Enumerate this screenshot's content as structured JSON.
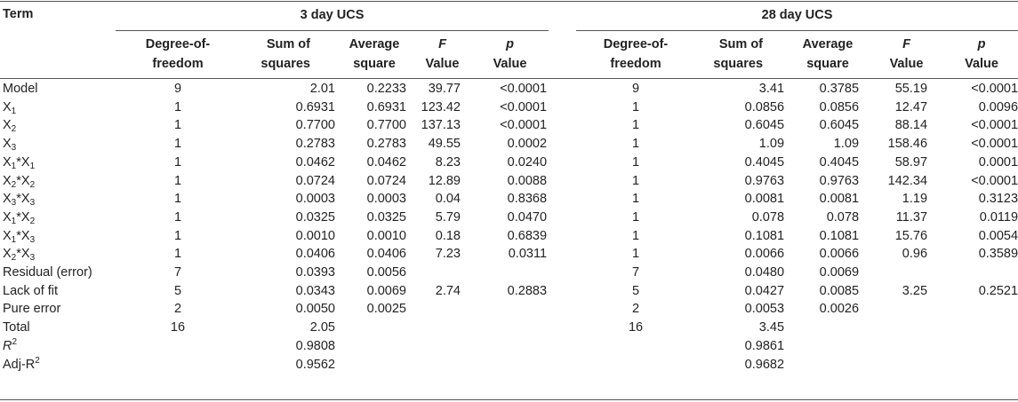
{
  "headers": {
    "term": "Term",
    "group1": "3 day UCS",
    "group2": "28 day UCS",
    "cols": [
      {
        "line1": "Degree-of-",
        "line2": "freedom",
        "italic": false
      },
      {
        "line1": "Sum of",
        "line2": "squares",
        "italic": false
      },
      {
        "line1": "Average",
        "line2": "square",
        "italic": false
      },
      {
        "line1": "F",
        "line2": "Value",
        "italic": true
      },
      {
        "line1": "p",
        "line2": "Value",
        "italic": true
      }
    ]
  },
  "rows": [
    {
      "term": "Model",
      "sub1": "",
      "op": "",
      "base2": "",
      "sub2": "",
      "sup": "",
      "d3": [
        "9",
        "2.01",
        "0.2233",
        "39.77",
        "<0.0001"
      ],
      "d28": [
        "9",
        "3.41",
        "0.3785",
        "55.19",
        "<0.0001"
      ]
    },
    {
      "term": "X",
      "sub1": "1",
      "op": "",
      "base2": "",
      "sub2": "",
      "sup": "",
      "d3": [
        "1",
        "0.6931",
        "0.6931",
        "123.42",
        "<0.0001"
      ],
      "d28": [
        "1",
        "0.0856",
        "0.0856",
        "12.47",
        "0.0096"
      ]
    },
    {
      "term": "X",
      "sub1": "2",
      "op": "",
      "base2": "",
      "sub2": "",
      "sup": "",
      "d3": [
        "1",
        "0.7700",
        "0.7700",
        "137.13",
        "<0.0001"
      ],
      "d28": [
        "1",
        "0.6045",
        "0.6045",
        "88.14",
        "<0.0001"
      ]
    },
    {
      "term": "X",
      "sub1": "3",
      "op": "",
      "base2": "",
      "sub2": "",
      "sup": "",
      "d3": [
        "1",
        "0.2783",
        "0.2783",
        "49.55",
        "0.0002"
      ],
      "d28": [
        "1",
        "1.09",
        "1.09",
        "158.46",
        "<0.0001"
      ]
    },
    {
      "term": "X",
      "sub1": "1",
      "op": "*",
      "base2": "X",
      "sub2": "1",
      "sup": "",
      "d3": [
        "1",
        "0.0462",
        "0.0462",
        "8.23",
        "0.0240"
      ],
      "d28": [
        "1",
        "0.4045",
        "0.4045",
        "58.97",
        "0.0001"
      ]
    },
    {
      "term": "X",
      "sub1": "2",
      "op": "*",
      "base2": "X",
      "sub2": "2",
      "sup": "",
      "d3": [
        "1",
        "0.0724",
        "0.0724",
        "12.89",
        "0.0088"
      ],
      "d28": [
        "1",
        "0.9763",
        "0.9763",
        "142.34",
        "<0.0001"
      ]
    },
    {
      "term": "X",
      "sub1": "3",
      "op": "*",
      "base2": "X",
      "sub2": "3",
      "sup": "",
      "d3": [
        "1",
        "0.0003",
        "0.0003",
        "0.04",
        "0.8368"
      ],
      "d28": [
        "1",
        "0.0081",
        "0.0081",
        "1.19",
        "0.3123"
      ]
    },
    {
      "term": "X",
      "sub1": "1",
      "op": "*",
      "base2": "X",
      "sub2": "2",
      "sup": "",
      "d3": [
        "1",
        "0.0325",
        "0.0325",
        "5.79",
        "0.0470"
      ],
      "d28": [
        "1",
        "0.078",
        "0.078",
        "11.37",
        "0.0119"
      ]
    },
    {
      "term": "X",
      "sub1": "1",
      "op": "*",
      "base2": "X",
      "sub2": "3",
      "sup": "",
      "d3": [
        "1",
        "0.0010",
        "0.0010",
        "0.18",
        "0.6839"
      ],
      "d28": [
        "1",
        "0.1081",
        "0.1081",
        "15.76",
        "0.0054"
      ]
    },
    {
      "term": "X",
      "sub1": "2",
      "op": "*",
      "base2": "X",
      "sub2": "3",
      "sup": "",
      "d3": [
        "1",
        "0.0406",
        "0.0406",
        "7.23",
        "0.0311"
      ],
      "d28": [
        "1",
        "0.0066",
        "0.0066",
        "0.96",
        "0.3589"
      ]
    },
    {
      "term": "Residual (error)",
      "sub1": "",
      "op": "",
      "base2": "",
      "sub2": "",
      "sup": "",
      "d3": [
        "7",
        "0.0393",
        "0.0056",
        "",
        ""
      ],
      "d28": [
        "7",
        "0.0480",
        "0.0069",
        "",
        ""
      ]
    },
    {
      "term": "Lack of fit",
      "sub1": "",
      "op": "",
      "base2": "",
      "sub2": "",
      "sup": "",
      "d3": [
        "5",
        "0.0343",
        "0.0069",
        "2.74",
        "0.2883"
      ],
      "d28": [
        "5",
        "0.0427",
        "0.0085",
        "3.25",
        "0.2521"
      ]
    },
    {
      "term": "Pure error",
      "sub1": "",
      "op": "",
      "base2": "",
      "sub2": "",
      "sup": "",
      "d3": [
        "2",
        "0.0050",
        "0.0025",
        "",
        ""
      ],
      "d28": [
        "2",
        "0.0053",
        "0.0026",
        "",
        ""
      ]
    },
    {
      "term": "Total",
      "sub1": "",
      "op": "",
      "base2": "",
      "sub2": "",
      "sup": "",
      "d3": [
        "16",
        "2.05",
        "",
        "",
        ""
      ],
      "d28": [
        "16",
        "3.45",
        "",
        "",
        ""
      ]
    },
    {
      "term": "R",
      "sub1": "",
      "op": "",
      "base2": "",
      "sub2": "",
      "sup": "2",
      "italicTerm": true,
      "d3": [
        "",
        "0.9808",
        "",
        "",
        ""
      ],
      "d28": [
        "",
        "0.9861",
        "",
        "",
        ""
      ]
    },
    {
      "term": "Adj-R",
      "sub1": "",
      "op": "",
      "base2": "",
      "sub2": "",
      "sup": "2",
      "d3": [
        "",
        "0.9562",
        "",
        "",
        ""
      ],
      "d28": [
        "",
        "0.9682",
        "",
        "",
        ""
      ]
    }
  ]
}
